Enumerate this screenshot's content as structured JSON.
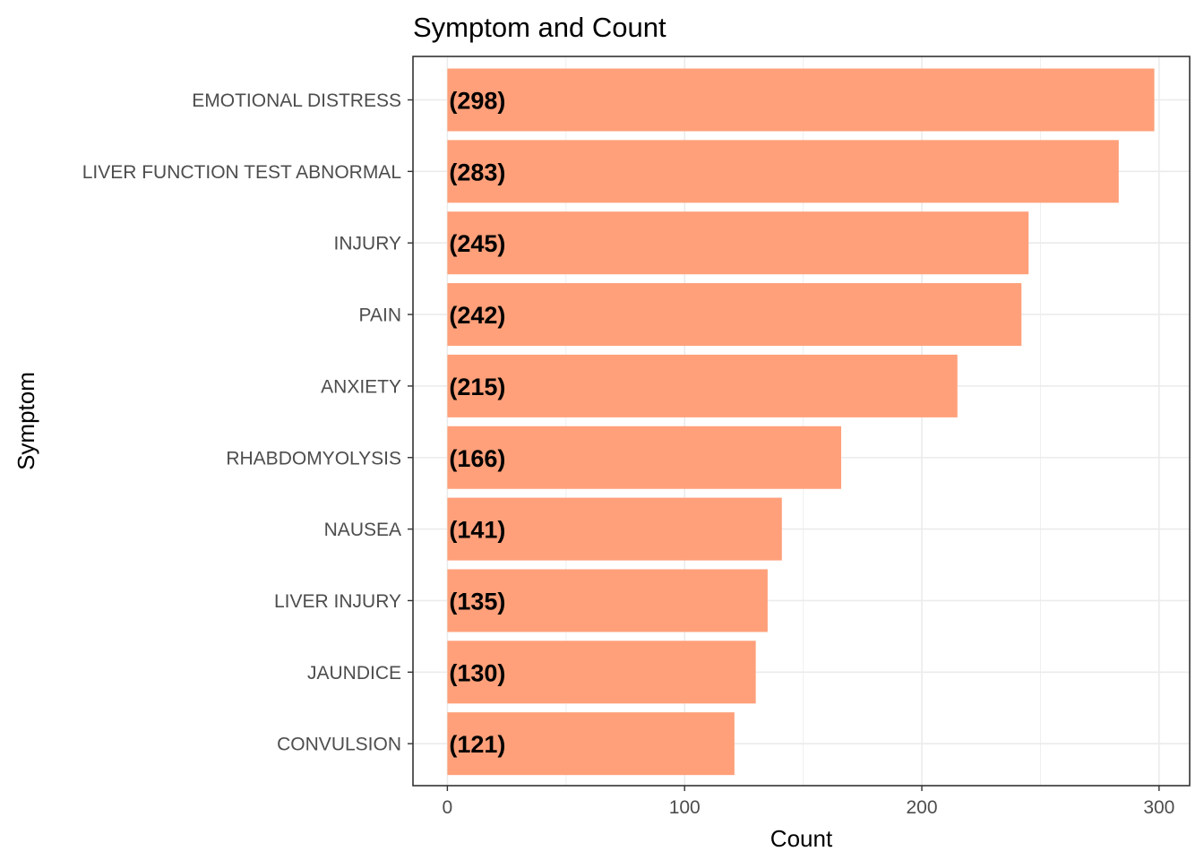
{
  "chart_data": {
    "type": "bar",
    "orientation": "horizontal",
    "title": "Symptom and Count",
    "xlabel": "Count",
    "ylabel": "Symptom",
    "categories": [
      "EMOTIONAL DISTRESS",
      "LIVER FUNCTION TEST ABNORMAL",
      "INJURY",
      "PAIN",
      "ANXIETY",
      "RHABDOMYOLYSIS",
      "NAUSEA",
      "LIVER INJURY",
      "JAUNDICE",
      "CONVULSION"
    ],
    "values": [
      298,
      283,
      245,
      242,
      215,
      166,
      141,
      135,
      130,
      121
    ],
    "data_labels": [
      "(298)",
      "(283)",
      "(245)",
      "(242)",
      "(215)",
      "(166)",
      "(141)",
      "(135)",
      "(130)",
      "(121)"
    ],
    "x_ticks": [
      0,
      100,
      200,
      300
    ],
    "x_tick_labels": [
      "0",
      "100",
      "200",
      "300"
    ],
    "xlim": [
      -14.5,
      312.9
    ],
    "grid": true,
    "legend": "none",
    "bar_color": "#ffa07a"
  }
}
